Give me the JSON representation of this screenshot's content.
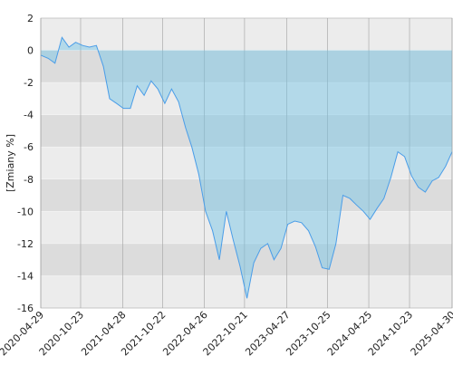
{
  "chart_data": {
    "type": "area",
    "y_label": "[Zmiany %]",
    "x": [
      "2020-04-29",
      "2020-06-01",
      "2020-07-01",
      "2020-08-01",
      "2020-09-01",
      "2020-10-01",
      "2020-11-01",
      "2020-12-01",
      "2021-01-01",
      "2021-02-01",
      "2021-03-01",
      "2021-04-01",
      "2021-05-01",
      "2021-06-01",
      "2021-07-01",
      "2021-08-01",
      "2021-09-01",
      "2021-10-01",
      "2021-11-01",
      "2021-12-01",
      "2022-01-01",
      "2022-02-01",
      "2022-03-01",
      "2022-04-01",
      "2022-05-01",
      "2022-06-01",
      "2022-07-01",
      "2022-08-01",
      "2022-09-01",
      "2022-10-01",
      "2022-11-01",
      "2022-12-01",
      "2023-01-01",
      "2023-02-01",
      "2023-03-01",
      "2023-04-01",
      "2023-05-01",
      "2023-06-01",
      "2023-07-01",
      "2023-08-01",
      "2023-09-01",
      "2023-10-01",
      "2023-11-01",
      "2023-12-01",
      "2024-01-01",
      "2024-02-01",
      "2024-03-01",
      "2024-04-01",
      "2024-05-01",
      "2024-06-01",
      "2024-07-01",
      "2024-08-01",
      "2024-09-01",
      "2024-10-01",
      "2024-11-01",
      "2024-12-01",
      "2025-01-01",
      "2025-02-01",
      "2025-03-01",
      "2025-04-01",
      "2025-04-30"
    ],
    "series": [
      {
        "color": "#4a9de8",
        "fill": "rgba(110,195,230,0.45)",
        "values": [
          -0.3,
          -0.5,
          -0.8,
          0.8,
          0.2,
          0.5,
          0.3,
          0.2,
          0.3,
          -1,
          -3,
          -3.3,
          -3.6,
          -3.6,
          -2.2,
          -2.8,
          -1.9,
          -2.4,
          -3.3,
          -2.4,
          -3.2,
          -4.8,
          -6,
          -7.7,
          -10,
          -11.2,
          -13,
          -10,
          -11.8,
          -13.4,
          -15.4,
          -13.2,
          -12.3,
          -12,
          -13,
          -12.3,
          -10.8,
          -10.6,
          -10.7,
          -11.2,
          -12.2,
          -13.5,
          -13.6,
          -12,
          -9,
          -9.2,
          -9.6,
          -10,
          -10.5,
          -9.8,
          -9.2,
          -7.9,
          -6.3,
          -6.6,
          -7.8,
          -8.5,
          -8.8,
          -8.1,
          -7.9,
          -7.2,
          -6.3
        ]
      }
    ],
    "xlim": [
      "2020-04-29",
      "2025-04-30"
    ],
    "xticks": [
      "2020-04-29",
      "2020-10-23",
      "2021-04-28",
      "2021-10-22",
      "2022-04-26",
      "2022-10-21",
      "2023-04-27",
      "2023-10-25",
      "2024-04-25",
      "2024-10-23",
      "2025-04-30"
    ],
    "ylim": [
      -16,
      2
    ],
    "yticks": [
      2,
      0,
      -2,
      -4,
      -6,
      -8,
      -10,
      -12,
      -14,
      -16
    ],
    "grid": true
  }
}
